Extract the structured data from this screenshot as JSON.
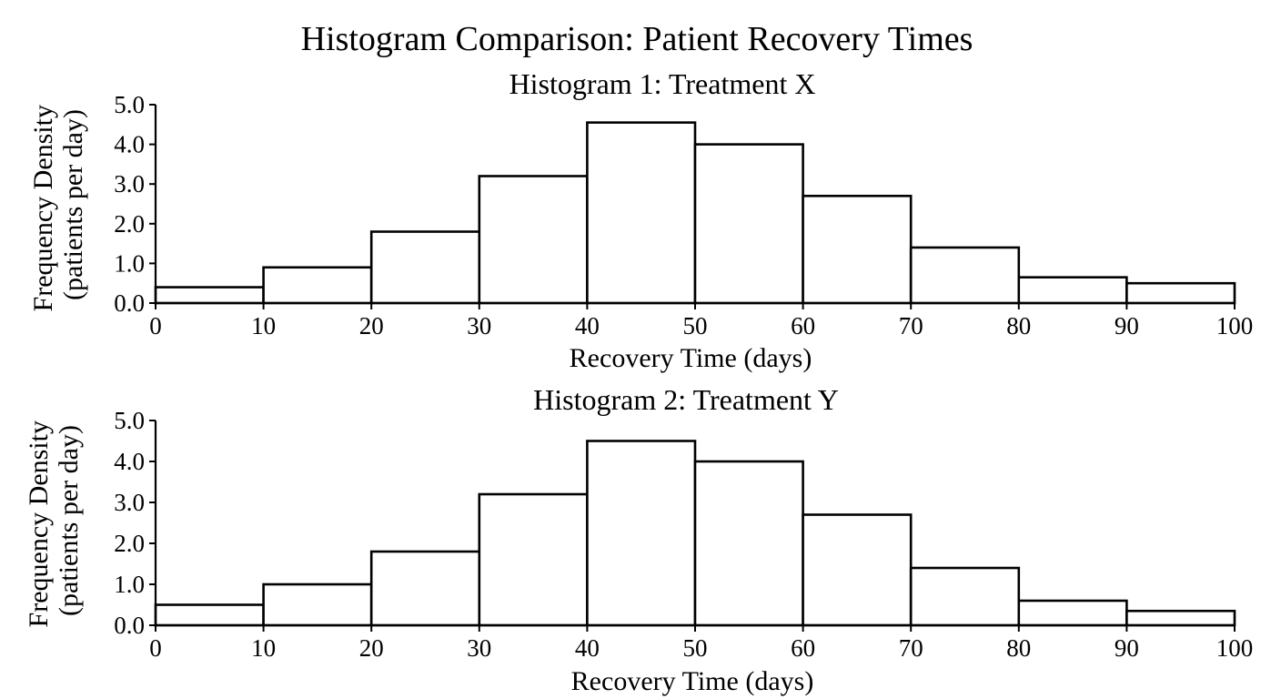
{
  "figure": {
    "title": "Histogram Comparison: Patient Recovery Times"
  },
  "chart_data": [
    {
      "type": "bar",
      "title": "Histogram 1: Treatment X",
      "xlabel": "Recovery Time (days)",
      "ylabel_line1": "Frequency Density",
      "ylabel_line2": "(patients per day)",
      "xlim": [
        0,
        100
      ],
      "ylim": [
        0,
        5
      ],
      "xticks": [
        0,
        10,
        20,
        30,
        40,
        50,
        60,
        70,
        80,
        90,
        100
      ],
      "yticks": [
        "0.0",
        "1.0",
        "2.0",
        "3.0",
        "4.0",
        "5.0"
      ],
      "bin_edges": [
        0,
        10,
        20,
        30,
        40,
        50,
        60,
        70,
        80,
        90,
        100
      ],
      "values": [
        0.4,
        0.9,
        1.8,
        3.2,
        4.55,
        4.0,
        2.7,
        1.4,
        0.65,
        0.5
      ],
      "grid": false,
      "bar_fill": "#ffffff",
      "bar_edge": "#000000"
    },
    {
      "type": "bar",
      "title": "Histogram 2: Treatment Y",
      "xlabel": "Recovery Time (days)",
      "ylabel_line1": "Frequency Density",
      "ylabel_line2": "(patients per day)",
      "xlim": [
        0,
        100
      ],
      "ylim": [
        0,
        5
      ],
      "xticks": [
        0,
        10,
        20,
        30,
        40,
        50,
        60,
        70,
        80,
        90,
        100
      ],
      "yticks": [
        "0.0",
        "1.0",
        "2.0",
        "3.0",
        "4.0",
        "5.0"
      ],
      "bin_edges": [
        0,
        10,
        20,
        30,
        40,
        50,
        60,
        70,
        80,
        90,
        100
      ],
      "values": [
        0.5,
        1.0,
        1.8,
        3.2,
        4.5,
        4.0,
        2.7,
        1.4,
        0.6,
        0.35
      ],
      "grid": false,
      "bar_fill": "#ffffff",
      "bar_edge": "#000000"
    }
  ]
}
